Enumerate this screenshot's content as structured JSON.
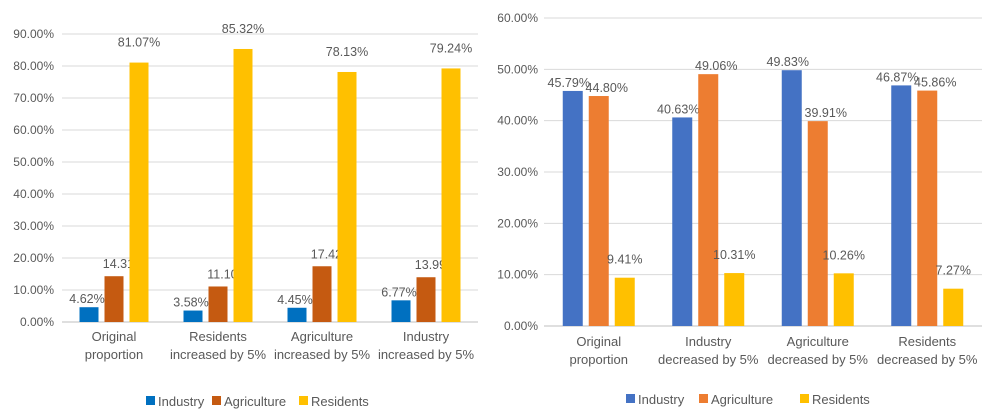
{
  "colors": {
    "Industry": "#0070c0",
    "Agriculture": "#c55a11",
    "Residents": "#ffc000",
    "Industry_right": "#4472c4",
    "Agriculture_right": "#ed7d31",
    "grid": "#d9d9d9",
    "axis": "#bfbfbf"
  },
  "chart_data": [
    {
      "type": "bar",
      "categories": [
        [
          "Original",
          "proportion"
        ],
        [
          "Residents",
          "increased by 5%"
        ],
        [
          "Agriculture",
          "increased by 5%"
        ],
        [
          "Industry",
          "increased by 5%"
        ]
      ],
      "ylim": [
        0,
        90
      ],
      "yticks": [
        "0.00%",
        "10.00%",
        "20.00%",
        "30.00%",
        "40.00%",
        "50.00%",
        "60.00%",
        "70.00%",
        "80.00%",
        "90.00%"
      ],
      "legend_position": "bottom",
      "grid": true,
      "series": [
        {
          "name": "Industry",
          "values": [
            4.62,
            3.58,
            4.45,
            6.77
          ],
          "labels": [
            "4.62%",
            "3.58%",
            "4.45%",
            "6.77%"
          ]
        },
        {
          "name": "Agriculture",
          "values": [
            14.31,
            11.1,
            17.42,
            13.99
          ],
          "labels": [
            "14.31%",
            "11.10%",
            "17.42%",
            "13.99%"
          ]
        },
        {
          "name": "Residents",
          "values": [
            81.07,
            85.32,
            78.13,
            79.24
          ],
          "labels": [
            "81.07%",
            "85.32%",
            "78.13%",
            "79.24%"
          ]
        }
      ]
    },
    {
      "type": "bar",
      "categories": [
        [
          "Original",
          "proportion"
        ],
        [
          "Industry",
          "decreased by 5%"
        ],
        [
          "Agriculture",
          "decreased by 5%"
        ],
        [
          "Residents",
          "decreased by 5%"
        ]
      ],
      "ylim": [
        0,
        60
      ],
      "yticks": [
        "0.00%",
        "10.00%",
        "20.00%",
        "30.00%",
        "40.00%",
        "50.00%",
        "60.00%"
      ],
      "legend_position": "bottom",
      "grid": true,
      "series": [
        {
          "name": "Industry",
          "values": [
            45.79,
            40.63,
            49.83,
            46.87
          ],
          "labels": [
            "45.79%",
            "40.63%",
            "49.83%",
            "46.87%"
          ]
        },
        {
          "name": "Agriculture",
          "values": [
            44.8,
            49.06,
            39.91,
            45.86
          ],
          "labels": [
            "44.80%",
            "49.06%",
            "39.91%",
            "45.86%"
          ]
        },
        {
          "name": "Residents",
          "values": [
            9.41,
            10.31,
            10.26,
            7.27
          ],
          "labels": [
            "9.41%",
            "10.31%",
            "10.26%",
            "7.27%"
          ]
        }
      ]
    }
  ]
}
